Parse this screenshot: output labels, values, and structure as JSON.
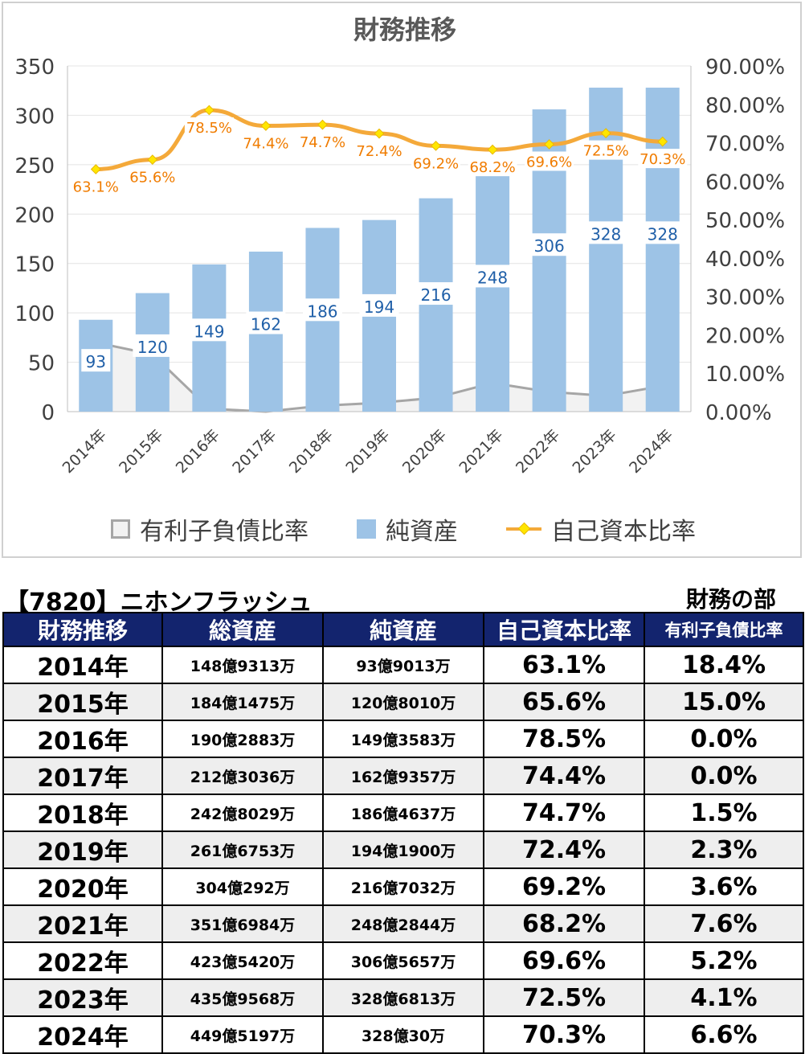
{
  "chart_data": {
    "type": "bar",
    "title": "財務推移",
    "categories": [
      "2014年",
      "2015年",
      "2016年",
      "2017年",
      "2018年",
      "2019年",
      "2020年",
      "2021年",
      "2022年",
      "2023年",
      "2024年"
    ],
    "series": [
      {
        "name": "有利子負債比率",
        "type": "area",
        "axis": "left",
        "values": [
          70,
          58,
          3,
          0,
          6,
          9,
          14,
          29,
          20,
          16,
          26
        ]
      },
      {
        "name": "純資産",
        "type": "bar",
        "axis": "left",
        "values": [
          93,
          120,
          149,
          162,
          186,
          194,
          216,
          248,
          306,
          328,
          328
        ],
        "labels": [
          "93",
          "120",
          "149",
          "162",
          "186",
          "194",
          "216",
          "248",
          "306",
          "328",
          "328"
        ]
      },
      {
        "name": "自己資本比率",
        "type": "line",
        "axis": "right",
        "values": [
          0.631,
          0.656,
          0.785,
          0.744,
          0.747,
          0.724,
          0.692,
          0.682,
          0.696,
          0.725,
          0.703
        ],
        "labels": [
          "63.1%",
          "65.6%",
          "78.5%",
          "74.4%",
          "74.7%",
          "72.4%",
          "69.2%",
          "68.2%",
          "69.6%",
          "72.5%",
          "70.3%"
        ]
      }
    ],
    "yleft": {
      "min": 0,
      "max": 350,
      "ticks": [
        "0",
        "50",
        "100",
        "150",
        "200",
        "250",
        "300",
        "350"
      ]
    },
    "yright": {
      "min": 0,
      "max": 0.9,
      "ticks": [
        "0.00%",
        "10.00%",
        "20.00%",
        "30.00%",
        "40.00%",
        "50.00%",
        "60.00%",
        "70.00%",
        "80.00%",
        "90.00%"
      ]
    },
    "grid": true,
    "legend_position": "bottom",
    "colors": {
      "bar": "#9dc3e6",
      "line": "#f4a93a",
      "marker": "#ffe600",
      "area_fill": "#f2f2f2",
      "area_line": "#a6a6a6",
      "bar_label": "#1f5fa8",
      "line_label": "#f07c00"
    }
  },
  "table": {
    "company": "【7820】ニホンフラッシュ",
    "section": "財務の部",
    "headers": [
      "財務推移",
      "総資産",
      "純資産",
      "自己資本比率",
      "有利子負債比率"
    ],
    "rows": [
      [
        "2014年",
        "148億9313万",
        "93億9013万",
        "63.1%",
        "18.4%"
      ],
      [
        "2015年",
        "184億1475万",
        "120億8010万",
        "65.6%",
        "15.0%"
      ],
      [
        "2016年",
        "190億2883万",
        "149億3583万",
        "78.5%",
        "0.0%"
      ],
      [
        "2017年",
        "212億3036万",
        "162億9357万",
        "74.4%",
        "0.0%"
      ],
      [
        "2018年",
        "242億8029万",
        "186億4637万",
        "74.7%",
        "1.5%"
      ],
      [
        "2019年",
        "261億6753万",
        "194億1900万",
        "72.4%",
        "2.3%"
      ],
      [
        "2020年",
        "304億292万",
        "216億7032万",
        "69.2%",
        "3.6%"
      ],
      [
        "2021年",
        "351億6984万",
        "248億2844万",
        "68.2%",
        "7.6%"
      ],
      [
        "2022年",
        "423億5420万",
        "306億5657万",
        "69.6%",
        "5.2%"
      ],
      [
        "2023年",
        "435億9568万",
        "328億6813万",
        "72.5%",
        "4.1%"
      ],
      [
        "2024年",
        "449億5197万",
        "328億30万",
        "70.3%",
        "6.6%"
      ]
    ]
  }
}
